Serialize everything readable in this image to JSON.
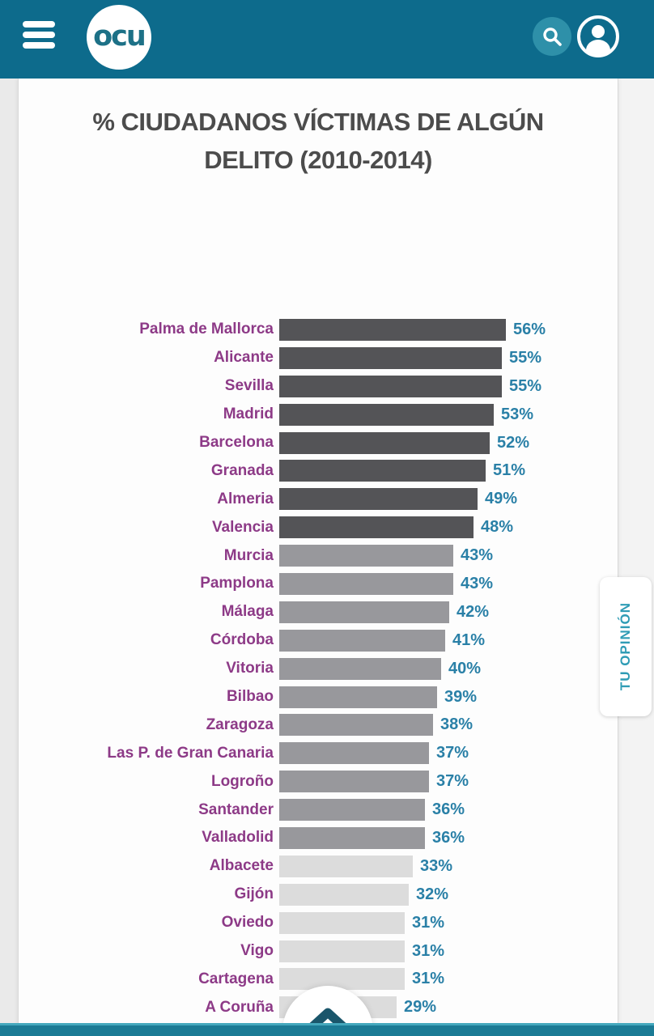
{
  "header": {
    "logo_text": "ocu"
  },
  "page": {
    "title_line1": "% CIUDADANOS VÍCTIMAS DE ALGÚN",
    "title_line2": "DELITO (2010-2014)"
  },
  "chart_data": {
    "type": "bar",
    "orientation": "horizontal",
    "title": "% CIUDADANOS VÍCTIMAS DE ALGÚN DELITO (2010-2014)",
    "value_unit": "%",
    "xlim": [
      0,
      60
    ],
    "grid": false,
    "legend": false,
    "categories": [
      "Palma de Mallorca",
      "Alicante",
      "Sevilla",
      "Madrid",
      "Barcelona",
      "Granada",
      "Almeria",
      "Valencia",
      "Murcia",
      "Pamplona",
      "Málaga",
      "Córdoba",
      "Vitoria",
      "Bilbao",
      "Zaragoza",
      "Las P. de Gran Canaria",
      "Logroño",
      "Santander",
      "Valladolid",
      "Albacete",
      "Gijón",
      "Oviedo",
      "Vigo",
      "Cartagena",
      "A Coruña"
    ],
    "values": [
      56,
      55,
      55,
      53,
      52,
      51,
      49,
      48,
      43,
      43,
      42,
      41,
      40,
      39,
      38,
      37,
      37,
      36,
      36,
      33,
      32,
      31,
      31,
      31,
      29
    ],
    "tiers": [
      "dark",
      "dark",
      "dark",
      "dark",
      "dark",
      "dark",
      "dark",
      "dark",
      "medium",
      "medium",
      "medium",
      "medium",
      "medium",
      "medium",
      "medium",
      "medium",
      "medium",
      "medium",
      "medium",
      "light",
      "light",
      "light",
      "light",
      "light",
      "light"
    ],
    "tier_colors": {
      "dark": "#545457",
      "medium": "#98989c",
      "light": "#dcdcdc"
    },
    "label_color": "#8d3a87",
    "value_color": "#2a80a7"
  },
  "side_tab": {
    "label": "TU OPINIÓN"
  },
  "colors": {
    "header_teal": "#0d6b8c",
    "search_circle_teal": "#2e90a9",
    "footer_teal": "#1b7b95",
    "footer_accent": "#44a8bd",
    "chevron_teal": "#1a566b",
    "title_gray": "#4c4c4c"
  }
}
